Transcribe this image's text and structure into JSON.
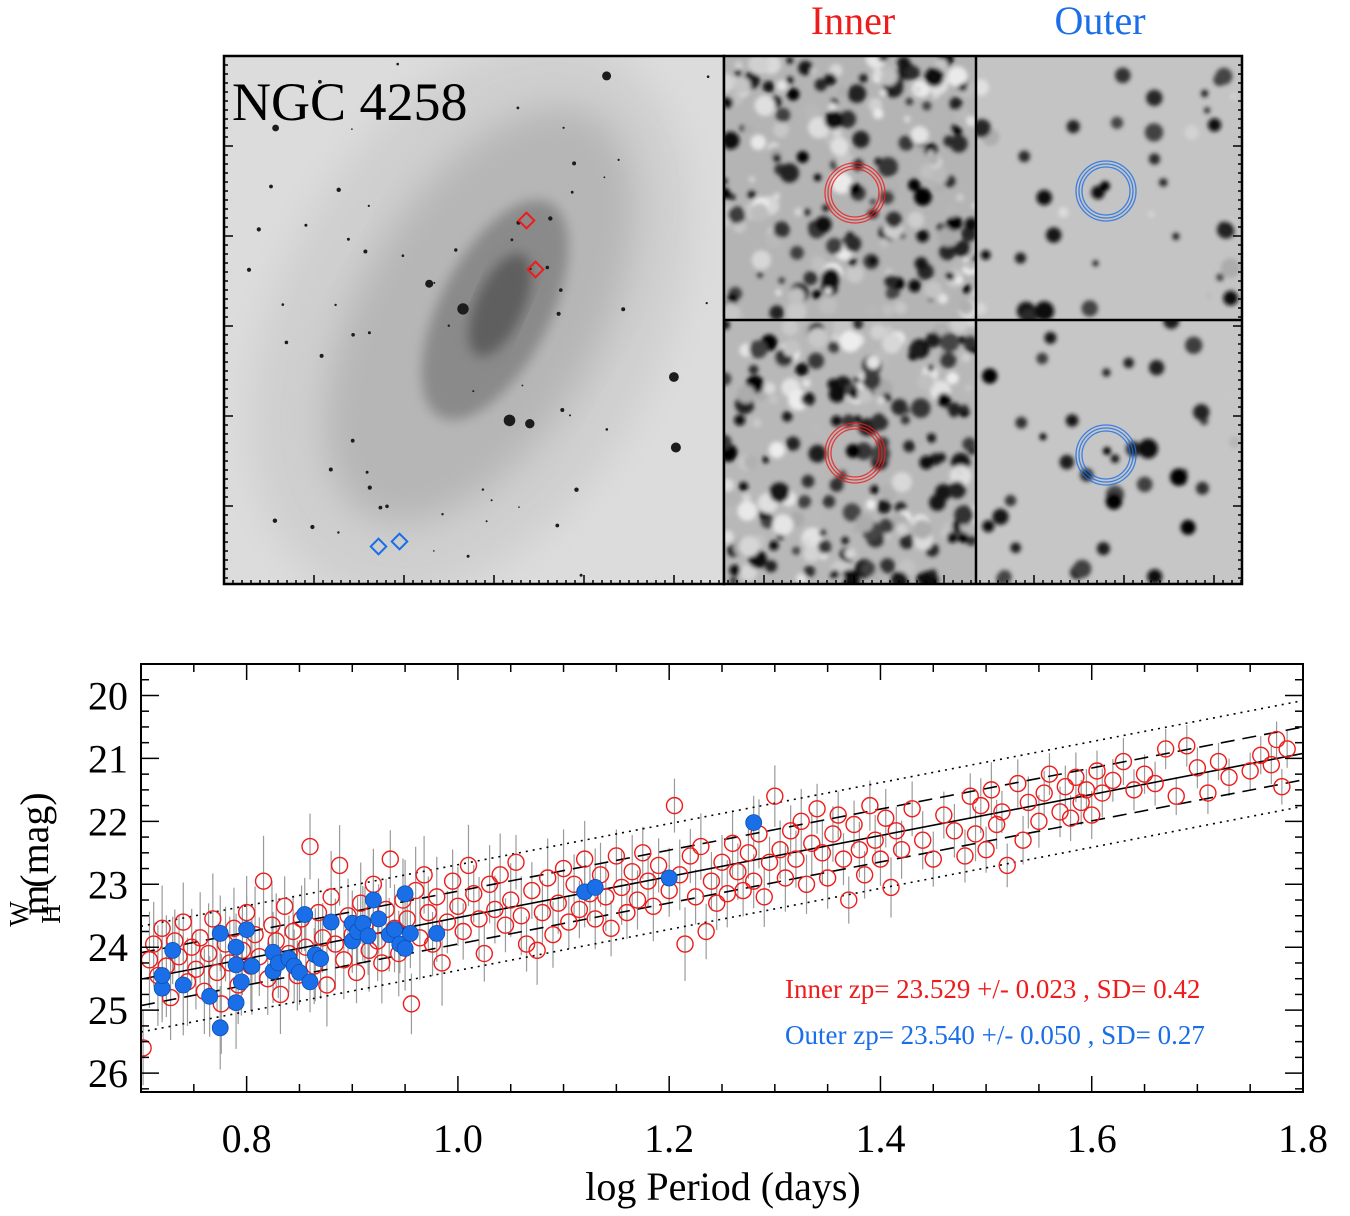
{
  "image_panel": {
    "galaxy_label": "NGC 4258",
    "inner_label": "Inner",
    "outer_label": "Outer"
  },
  "colors": {
    "inner": "#ee1c1c",
    "outer": "#1a6ee8",
    "axis": "#000000",
    "errorbar": "#9a9a9a"
  },
  "chart_data": {
    "type": "scatter",
    "title": "",
    "xlabel": "log Period (days)",
    "ylabel": "m",
    "ylabel_sup": "W",
    "ylabel_sub": "H",
    "ylabel_unit": "(mag)",
    "xlim": [
      0.7,
      1.8
    ],
    "ylim": [
      26.3,
      19.5
    ],
    "xticks": [
      "0.8",
      "1.0",
      "1.2",
      "1.4",
      "1.6",
      "1.8"
    ],
    "yticks": [
      "20",
      "21",
      "22",
      "23",
      "24",
      "25",
      "26"
    ],
    "fit": {
      "slope": -3.26,
      "zeropoint": 23.529,
      "zp_at_logP": 1.0,
      "dashed_offset": 0.42,
      "dotted_offset": 0.84
    },
    "annotations": {
      "inner": "Inner zp= 23.529 +/- 0.023 , SD= 0.42",
      "outer": "Outer zp= 23.540 +/- 0.050 , SD= 0.27"
    },
    "series": [
      {
        "name": "Outer",
        "marker": "filled-circle",
        "points": [
          [
            0.72,
            24.65
          ],
          [
            0.72,
            24.45
          ],
          [
            0.73,
            24.05
          ],
          [
            0.74,
            24.6
          ],
          [
            0.765,
            24.78
          ],
          [
            0.775,
            23.78
          ],
          [
            0.775,
            25.28
          ],
          [
            0.79,
            24.0
          ],
          [
            0.79,
            24.28
          ],
          [
            0.79,
            24.88
          ],
          [
            0.795,
            24.55
          ],
          [
            0.8,
            23.72
          ],
          [
            0.805,
            24.3
          ],
          [
            0.825,
            24.08
          ],
          [
            0.825,
            24.38
          ],
          [
            0.83,
            24.25
          ],
          [
            0.84,
            24.18
          ],
          [
            0.845,
            24.3
          ],
          [
            0.85,
            24.4
          ],
          [
            0.855,
            23.48
          ],
          [
            0.86,
            24.55
          ],
          [
            0.865,
            24.12
          ],
          [
            0.87,
            24.18
          ],
          [
            0.88,
            23.6
          ],
          [
            0.9,
            23.62
          ],
          [
            0.9,
            23.9
          ],
          [
            0.905,
            23.75
          ],
          [
            0.91,
            23.62
          ],
          [
            0.915,
            23.82
          ],
          [
            0.92,
            23.25
          ],
          [
            0.925,
            23.55
          ],
          [
            0.935,
            23.8
          ],
          [
            0.94,
            23.72
          ],
          [
            0.945,
            23.95
          ],
          [
            0.95,
            23.15
          ],
          [
            0.95,
            24.02
          ],
          [
            0.955,
            23.78
          ],
          [
            0.98,
            23.78
          ],
          [
            1.12,
            23.12
          ],
          [
            1.13,
            23.05
          ],
          [
            1.2,
            22.9
          ],
          [
            1.28,
            22.02
          ]
        ]
      },
      {
        "name": "Inner",
        "marker": "open-circle",
        "points": [
          [
            0.702,
            25.6
          ],
          [
            0.708,
            24.2
          ],
          [
            0.712,
            23.95
          ],
          [
            0.716,
            24.45
          ],
          [
            0.72,
            23.7
          ],
          [
            0.724,
            24.3
          ],
          [
            0.728,
            24.8
          ],
          [
            0.732,
            23.9
          ],
          [
            0.736,
            24.15
          ],
          [
            0.74,
            23.6
          ],
          [
            0.744,
            24.55
          ],
          [
            0.748,
            24.0
          ],
          [
            0.752,
            24.35
          ],
          [
            0.756,
            23.85
          ],
          [
            0.76,
            24.7
          ],
          [
            0.764,
            24.1
          ],
          [
            0.768,
            23.55
          ],
          [
            0.772,
            24.4
          ],
          [
            0.776,
            24.9
          ],
          [
            0.78,
            23.95
          ],
          [
            0.784,
            24.25
          ],
          [
            0.788,
            23.7
          ],
          [
            0.792,
            24.6
          ],
          [
            0.796,
            24.05
          ],
          [
            0.8,
            23.45
          ],
          [
            0.804,
            24.3
          ],
          [
            0.808,
            23.8
          ],
          [
            0.812,
            24.15
          ],
          [
            0.816,
            22.95
          ],
          [
            0.82,
            24.5
          ],
          [
            0.824,
            23.65
          ],
          [
            0.828,
            23.9
          ],
          [
            0.832,
            24.75
          ],
          [
            0.836,
            23.35
          ],
          [
            0.84,
            24.1
          ],
          [
            0.844,
            23.75
          ],
          [
            0.848,
            24.45
          ],
          [
            0.852,
            23.55
          ],
          [
            0.856,
            24.0
          ],
          [
            0.86,
            22.4
          ],
          [
            0.864,
            24.3
          ],
          [
            0.868,
            23.45
          ],
          [
            0.872,
            23.85
          ],
          [
            0.876,
            24.6
          ],
          [
            0.88,
            23.2
          ],
          [
            0.884,
            23.95
          ],
          [
            0.888,
            22.7
          ],
          [
            0.892,
            24.2
          ],
          [
            0.896,
            23.5
          ],
          [
            0.9,
            23.8
          ],
          [
            0.904,
            24.4
          ],
          [
            0.908,
            23.3
          ],
          [
            0.912,
            23.65
          ],
          [
            0.916,
            24.05
          ],
          [
            0.92,
            23.0
          ],
          [
            0.924,
            23.9
          ],
          [
            0.928,
            24.25
          ],
          [
            0.932,
            23.4
          ],
          [
            0.936,
            22.6
          ],
          [
            0.94,
            23.7
          ],
          [
            0.944,
            24.1
          ],
          [
            0.948,
            23.25
          ],
          [
            0.952,
            23.55
          ],
          [
            0.956,
            24.9
          ],
          [
            0.96,
            23.1
          ],
          [
            0.964,
            23.85
          ],
          [
            0.968,
            22.85
          ],
          [
            0.972,
            23.45
          ],
          [
            0.976,
            23.95
          ],
          [
            0.98,
            23.2
          ],
          [
            0.985,
            24.25
          ],
          [
            0.99,
            23.6
          ],
          [
            0.995,
            22.95
          ],
          [
            1.0,
            23.35
          ],
          [
            1.005,
            23.75
          ],
          [
            1.01,
            22.7
          ],
          [
            1.015,
            23.15
          ],
          [
            1.02,
            23.55
          ],
          [
            1.025,
            24.1
          ],
          [
            1.03,
            23.0
          ],
          [
            1.035,
            23.4
          ],
          [
            1.04,
            22.85
          ],
          [
            1.045,
            23.65
          ],
          [
            1.05,
            23.25
          ],
          [
            1.055,
            22.65
          ],
          [
            1.06,
            23.5
          ],
          [
            1.065,
            23.95
          ],
          [
            1.07,
            23.1
          ],
          [
            1.075,
            24.05
          ],
          [
            1.08,
            23.45
          ],
          [
            1.085,
            22.9
          ],
          [
            1.09,
            23.8
          ],
          [
            1.095,
            23.3
          ],
          [
            1.1,
            22.75
          ],
          [
            1.105,
            23.6
          ],
          [
            1.11,
            23.0
          ],
          [
            1.115,
            23.4
          ],
          [
            1.12,
            22.6
          ],
          [
            1.125,
            23.15
          ],
          [
            1.13,
            23.55
          ],
          [
            1.135,
            22.85
          ],
          [
            1.14,
            23.2
          ],
          [
            1.145,
            23.7
          ],
          [
            1.15,
            22.55
          ],
          [
            1.155,
            23.05
          ],
          [
            1.16,
            23.45
          ],
          [
            1.165,
            22.8
          ],
          [
            1.17,
            23.25
          ],
          [
            1.175,
            22.5
          ],
          [
            1.18,
            22.95
          ],
          [
            1.185,
            23.35
          ],
          [
            1.19,
            22.7
          ],
          [
            1.2,
            23.1
          ],
          [
            1.205,
            21.75
          ],
          [
            1.21,
            22.85
          ],
          [
            1.215,
            23.95
          ],
          [
            1.22,
            22.55
          ],
          [
            1.225,
            23.2
          ],
          [
            1.23,
            22.4
          ],
          [
            1.235,
            23.75
          ],
          [
            1.24,
            22.95
          ],
          [
            1.245,
            23.3
          ],
          [
            1.25,
            22.65
          ],
          [
            1.255,
            23.15
          ],
          [
            1.26,
            22.35
          ],
          [
            1.265,
            22.8
          ],
          [
            1.27,
            23.1
          ],
          [
            1.275,
            22.5
          ],
          [
            1.28,
            22.95
          ],
          [
            1.285,
            22.2
          ],
          [
            1.29,
            23.2
          ],
          [
            1.295,
            22.65
          ],
          [
            1.3,
            21.6
          ],
          [
            1.305,
            22.45
          ],
          [
            1.31,
            22.9
          ],
          [
            1.315,
            22.15
          ],
          [
            1.32,
            22.6
          ],
          [
            1.325,
            22.0
          ],
          [
            1.33,
            23.0
          ],
          [
            1.335,
            22.35
          ],
          [
            1.34,
            21.8
          ],
          [
            1.345,
            22.5
          ],
          [
            1.35,
            22.9
          ],
          [
            1.355,
            22.2
          ],
          [
            1.36,
            21.9
          ],
          [
            1.365,
            22.6
          ],
          [
            1.37,
            23.25
          ],
          [
            1.375,
            22.05
          ],
          [
            1.38,
            22.45
          ],
          [
            1.385,
            22.85
          ],
          [
            1.39,
            21.75
          ],
          [
            1.395,
            22.3
          ],
          [
            1.4,
            22.6
          ],
          [
            1.405,
            21.95
          ],
          [
            1.41,
            23.05
          ],
          [
            1.415,
            22.15
          ],
          [
            1.42,
            22.45
          ],
          [
            1.43,
            21.8
          ],
          [
            1.44,
            22.3
          ],
          [
            1.45,
            22.6
          ],
          [
            1.46,
            21.9
          ],
          [
            1.47,
            22.15
          ],
          [
            1.48,
            22.55
          ],
          [
            1.485,
            21.6
          ],
          [
            1.49,
            22.2
          ],
          [
            1.495,
            21.75
          ],
          [
            1.5,
            22.45
          ],
          [
            1.505,
            21.5
          ],
          [
            1.51,
            22.05
          ],
          [
            1.515,
            21.85
          ],
          [
            1.52,
            22.7
          ],
          [
            1.53,
            21.4
          ],
          [
            1.535,
            22.3
          ],
          [
            1.54,
            21.7
          ],
          [
            1.55,
            22.0
          ],
          [
            1.555,
            21.55
          ],
          [
            1.56,
            21.25
          ],
          [
            1.57,
            21.85
          ],
          [
            1.575,
            21.45
          ],
          [
            1.58,
            21.95
          ],
          [
            1.585,
            21.3
          ],
          [
            1.59,
            21.7
          ],
          [
            1.595,
            21.5
          ],
          [
            1.6,
            21.9
          ],
          [
            1.605,
            21.2
          ],
          [
            1.61,
            21.55
          ],
          [
            1.62,
            21.35
          ],
          [
            1.63,
            21.05
          ],
          [
            1.64,
            21.5
          ],
          [
            1.65,
            21.25
          ],
          [
            1.66,
            21.4
          ],
          [
            1.67,
            20.85
          ],
          [
            1.68,
            21.6
          ],
          [
            1.69,
            20.8
          ],
          [
            1.7,
            21.15
          ],
          [
            1.71,
            21.55
          ],
          [
            1.72,
            21.05
          ],
          [
            1.73,
            21.3
          ],
          [
            1.75,
            21.2
          ],
          [
            1.76,
            20.95
          ],
          [
            1.77,
            21.1
          ],
          [
            1.775,
            20.7
          ],
          [
            1.78,
            21.45
          ],
          [
            1.785,
            20.85
          ]
        ]
      }
    ]
  }
}
